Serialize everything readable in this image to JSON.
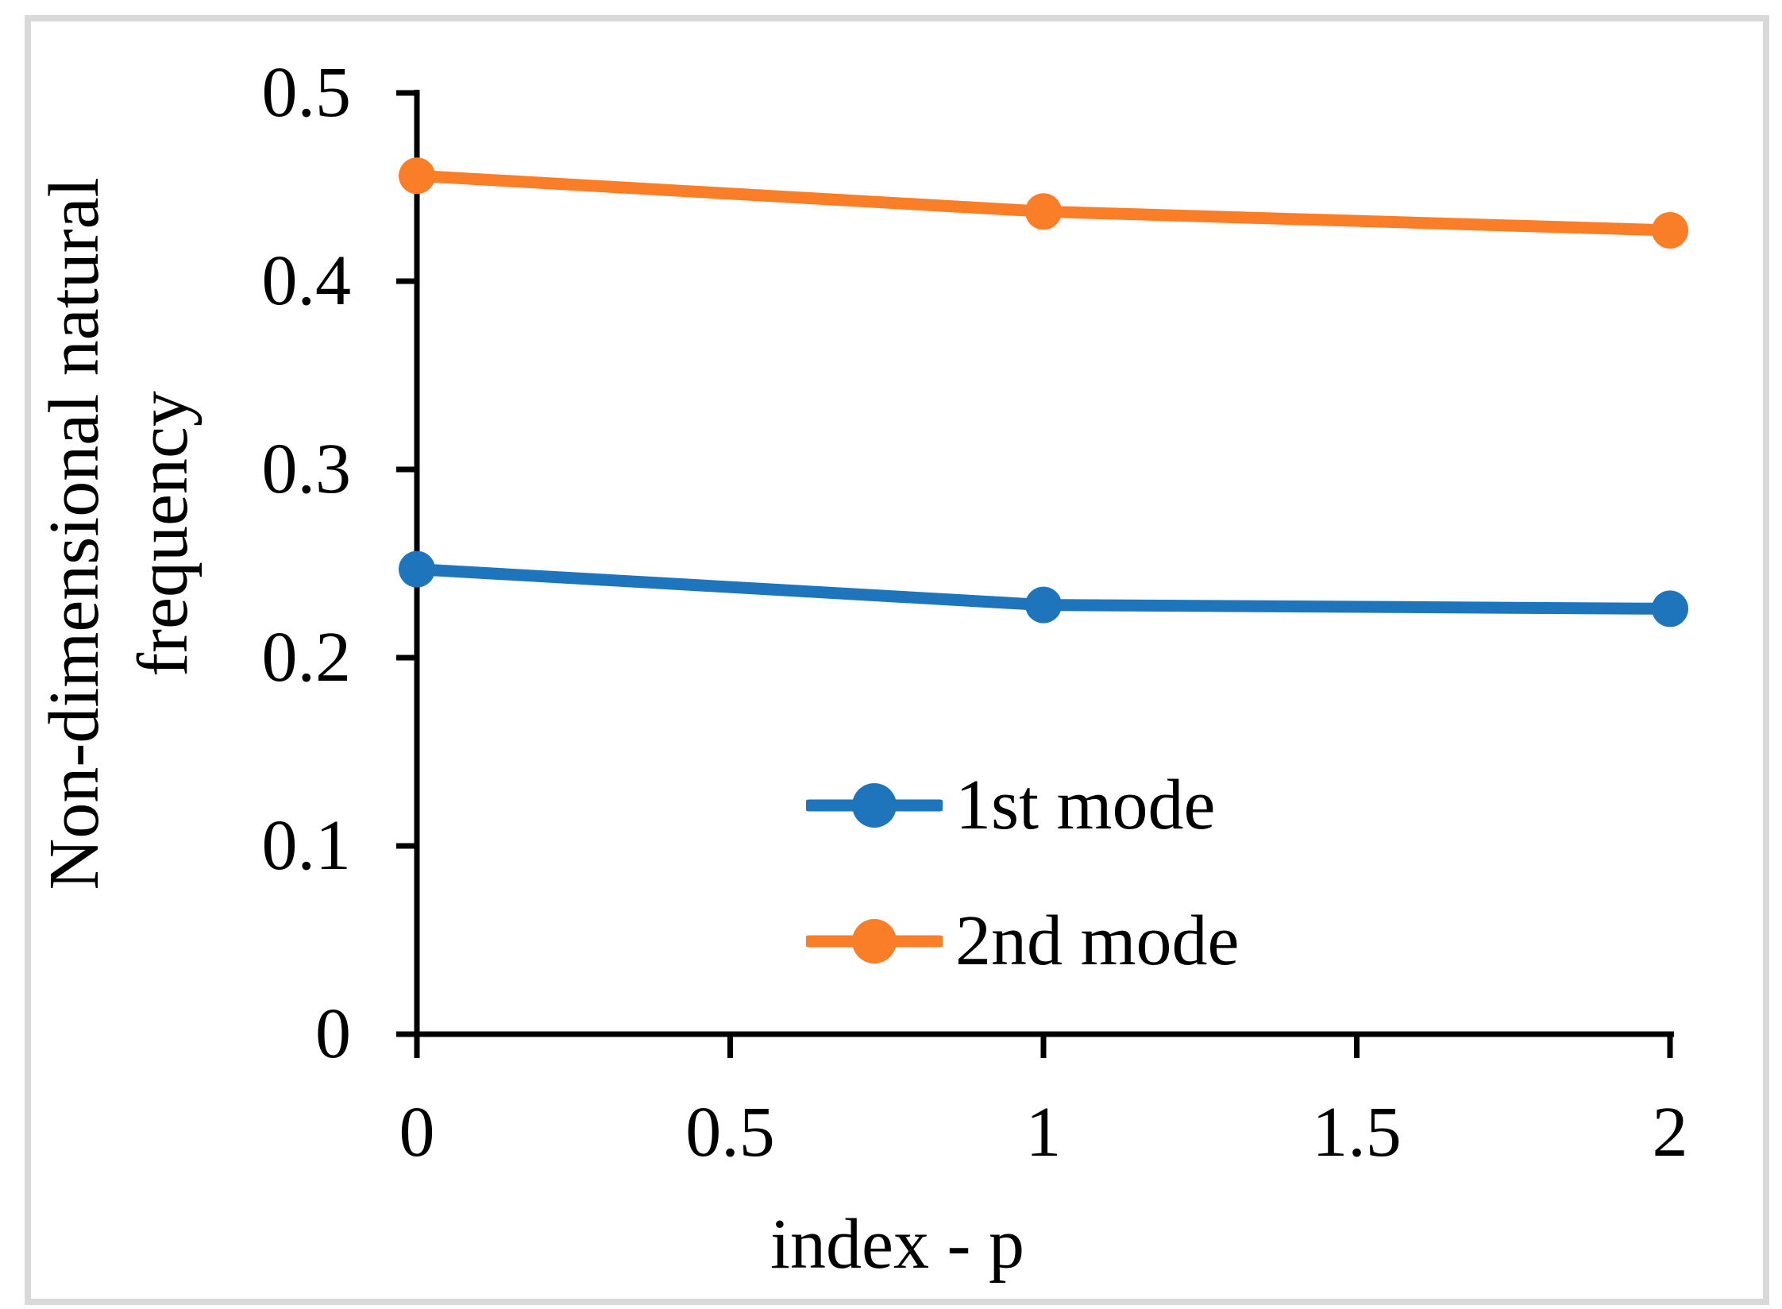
{
  "chart_data": {
    "type": "line",
    "title": "",
    "xlabel": "index - p",
    "ylabel_lines": [
      "Non-dimensional natural",
      "frequency"
    ],
    "xlim": [
      0,
      2
    ],
    "ylim": [
      0,
      0.5
    ],
    "grid": false,
    "legend_position": "inside lower center",
    "x": [
      0,
      1,
      2
    ],
    "series": [
      {
        "name": "1st mode",
        "color": "#1f75bc",
        "marker": "circle",
        "values": [
          0.247,
          0.228,
          0.226
        ]
      },
      {
        "name": "2nd mode",
        "color": "#fa7d28",
        "marker": "circle",
        "values": [
          0.456,
          0.437,
          0.427
        ]
      }
    ],
    "x_ticks": [
      {
        "value": 0,
        "label": "0"
      },
      {
        "value": 0.5,
        "label": "0.5"
      },
      {
        "value": 1,
        "label": "1"
      },
      {
        "value": 1.5,
        "label": "1.5"
      },
      {
        "value": 2,
        "label": "2"
      }
    ],
    "y_ticks": [
      {
        "value": 0,
        "label": "0"
      },
      {
        "value": 0.1,
        "label": "0.1"
      },
      {
        "value": 0.2,
        "label": "0.2"
      },
      {
        "value": 0.3,
        "label": "0.3"
      },
      {
        "value": 0.4,
        "label": "0.4"
      },
      {
        "value": 0.5,
        "label": "0.5"
      }
    ],
    "axis_color": "#000000",
    "frame_border_color": "#d9d9d9"
  }
}
